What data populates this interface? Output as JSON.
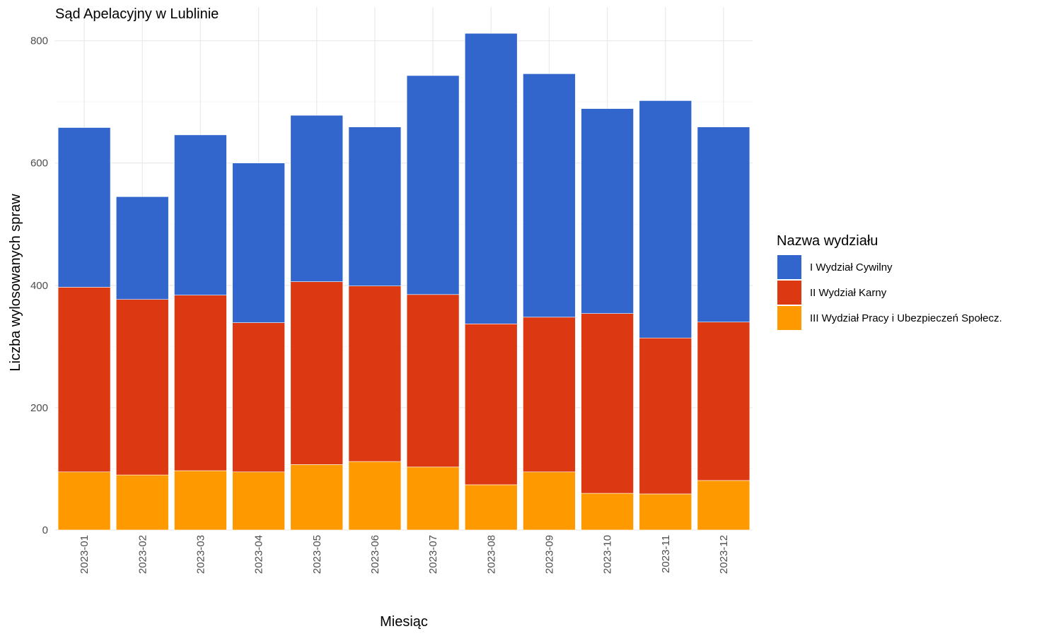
{
  "chart_data": {
    "type": "bar",
    "stacked": true,
    "title": "Sąd Apelacyjny w Lublinie",
    "xlabel": "Miesiąc",
    "ylabel": "Liczba wylosowanych spraw",
    "ylim": [
      0,
      830
    ],
    "yticks": [
      0,
      200,
      400,
      600,
      800
    ],
    "grid": true,
    "legend_position": "right",
    "legend_title": "Nazwa wydziału",
    "categories": [
      "2023-01",
      "2023-02",
      "2023-03",
      "2023-04",
      "2023-05",
      "2023-06",
      "2023-07",
      "2023-08",
      "2023-09",
      "2023-10",
      "2023-11",
      "2023-12"
    ],
    "series": [
      {
        "name": "III Wydział Pracy i Ubezpieczeń Społecz.",
        "color": "#FF9900",
        "values": [
          95,
          90,
          97,
          95,
          107,
          112,
          103,
          74,
          95,
          60,
          59,
          81
        ]
      },
      {
        "name": "II Wydział Karny",
        "color": "#DC3912",
        "values": [
          302,
          287,
          287,
          244,
          299,
          287,
          282,
          263,
          253,
          294,
          255,
          259
        ]
      },
      {
        "name": "I Wydział Cywilny",
        "color": "#3366CC",
        "values": [
          261,
          168,
          262,
          261,
          272,
          260,
          358,
          475,
          398,
          335,
          388,
          319
        ]
      }
    ],
    "legend_order": [
      "I Wydział Cywilny",
      "II Wydział Karny",
      "III Wydział Pracy i Ubezpieczeń Społecz."
    ]
  }
}
